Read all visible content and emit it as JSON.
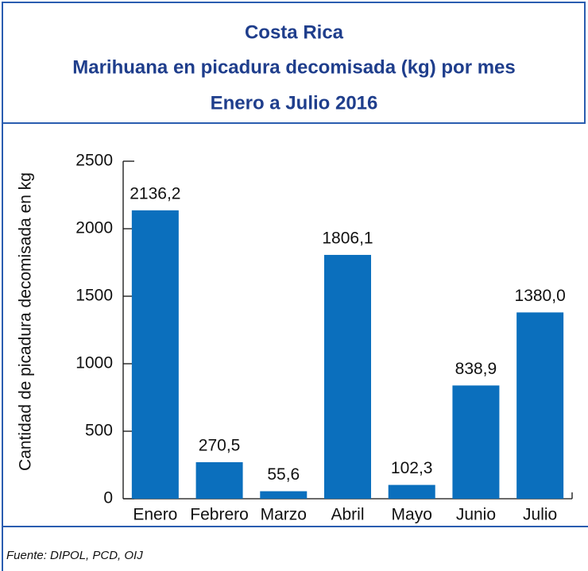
{
  "chart_data": {
    "type": "bar",
    "title": [
      "Costa Rica",
      "Marihuana en picadura decomisada (kg) por mes",
      "Enero a Julio 2016"
    ],
    "ylabel": "Cantidad de picadura decomisada en kg",
    "categories": [
      "Enero",
      "Febrero",
      "Marzo",
      "Abril",
      "Mayo",
      "Junio",
      "Julio"
    ],
    "values": [
      2136.2,
      270.5,
      55.6,
      1806.1,
      102.3,
      838.9,
      1380.0
    ],
    "value_labels": [
      "2136,2",
      "270,5",
      "55,6",
      "1806,1",
      "102,3",
      "838,9",
      "1380,0"
    ],
    "color": "#0b6fbd",
    "ylim": [
      0,
      2500
    ],
    "yticks": [
      0,
      500,
      1000,
      1500,
      2000,
      2500
    ],
    "source": "Fuente: DIPOL, PCD, OIJ"
  }
}
